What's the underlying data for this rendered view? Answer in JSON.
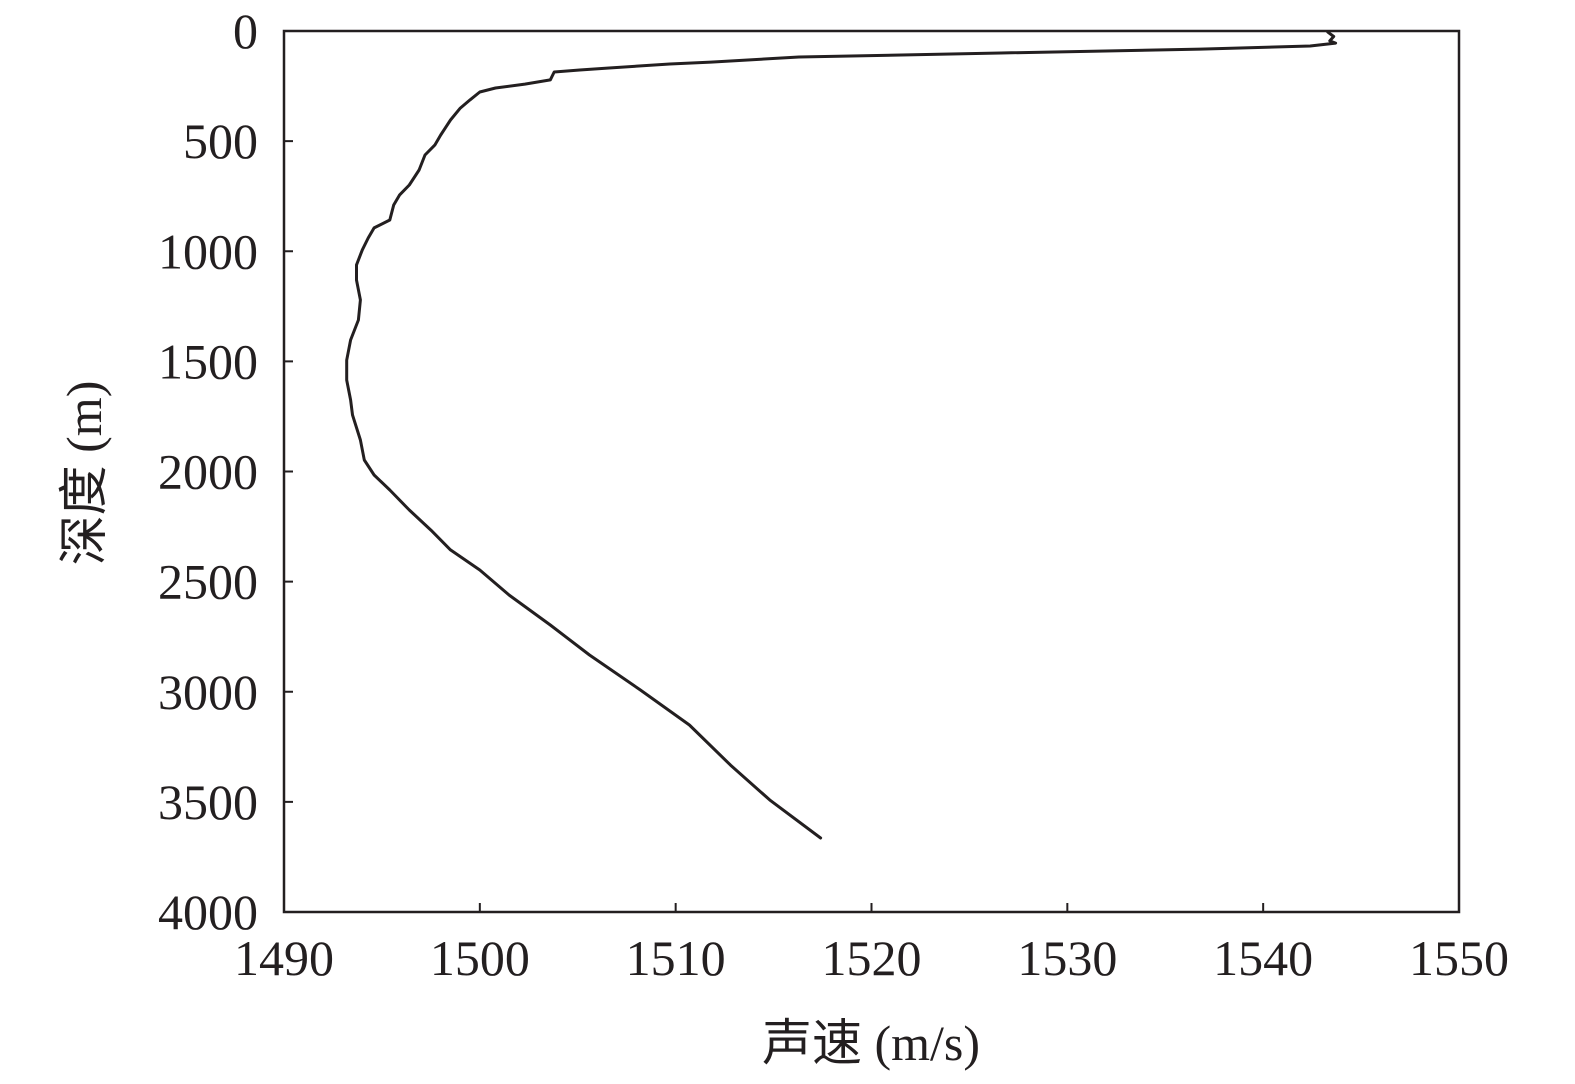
{
  "chart_data": {
    "type": "line",
    "xlabel": "声速 (m/s)",
    "ylabel": "深度 (m)",
    "xlim": [
      1490,
      1550
    ],
    "ylim": [
      0,
      4000
    ],
    "y_inverted": true,
    "grid": false,
    "x_ticks": [
      1490,
      1500,
      1510,
      1520,
      1530,
      1540,
      1550
    ],
    "y_ticks": [
      0,
      500,
      1000,
      1500,
      2000,
      2500,
      3000,
      3500,
      4000
    ],
    "line_color": "#231f20",
    "series": [
      {
        "x": [
          1543.3,
          1543.6,
          1543.4,
          1543.7,
          1542.4,
          1536.8,
          1526.6,
          1516.3,
          1511.8,
          1509.7,
          1506.6,
          1505.1,
          1503.8,
          1503.6,
          1502.3,
          1500.8,
          1500.0,
          1499.5,
          1499.0,
          1498.5,
          1498.0,
          1497.7,
          1497.2,
          1496.9,
          1496.4,
          1495.9,
          1495.6,
          1495.4,
          1494.6,
          1494.3,
          1494.0,
          1493.7,
          1493.7,
          1493.9,
          1493.8,
          1493.4,
          1493.2,
          1493.2,
          1493.4,
          1493.5,
          1493.9,
          1494.1,
          1494.6,
          1495.4,
          1496.4,
          1497.5,
          1498.5,
          1500.0,
          1501.5,
          1503.6,
          1505.6,
          1508.2,
          1510.7,
          1512.8,
          1514.8,
          1517.4
        ],
        "y": [
          5,
          25,
          45,
          55,
          68,
          82,
          100,
          118,
          141,
          150,
          168,
          177,
          186,
          222,
          241,
          259,
          277,
          313,
          350,
          404,
          472,
          518,
          563,
          631,
          699,
          745,
          790,
          858,
          894,
          940,
          994,
          1062,
          1131,
          1221,
          1312,
          1403,
          1494,
          1585,
          1675,
          1743,
          1857,
          1948,
          2016,
          2084,
          2175,
          2266,
          2356,
          2447,
          2561,
          2697,
          2833,
          2992,
          3151,
          3333,
          3491,
          3664
        ]
      }
    ]
  }
}
